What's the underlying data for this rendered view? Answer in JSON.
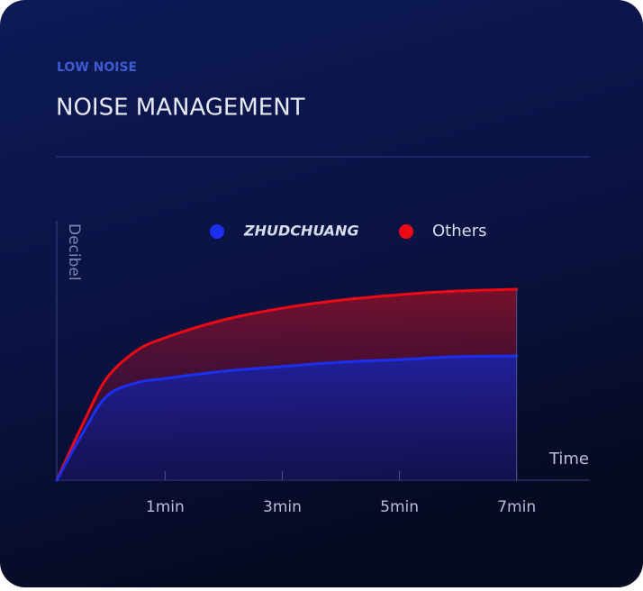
{
  "chart_data": {
    "type": "line",
    "eyebrow": "LOW NOISE",
    "title": "NOISE MANAGEMENT",
    "y_label": "Decibel",
    "x_label": "Time",
    "x": [
      -0.85,
      -0.4,
      0,
      0.5,
      1,
      2,
      3,
      4,
      5,
      6,
      7
    ],
    "series": [
      {
        "name": "ZHUDCHUANG",
        "color": "#1c2ff0",
        "values": [
          0,
          18.4,
          32.3,
          37.5,
          39.2,
          42.0,
          43.8,
          45.5,
          46.5,
          47.6,
          47.9
        ]
      },
      {
        "name": "Others",
        "color": "#ee0a14",
        "values": [
          0,
          21.9,
          39.2,
          49.7,
          54.9,
          61.8,
          66.3,
          69.4,
          71.5,
          72.9,
          73.6
        ]
      }
    ],
    "xlim": [
      -0.85,
      8.25
    ],
    "xticks": [
      {
        "value": 1,
        "label": "1min"
      },
      {
        "value": 3,
        "label": "3min"
      },
      {
        "value": 5,
        "label": "5min"
      },
      {
        "value": 7,
        "label": "7min"
      }
    ],
    "ylim": [
      0,
      100
    ]
  }
}
